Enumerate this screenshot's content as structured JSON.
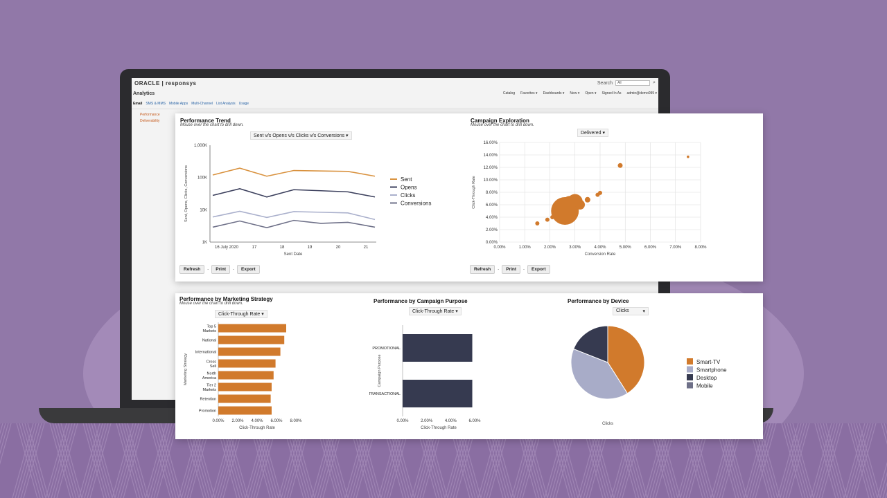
{
  "background_app": {
    "brand": "ORACLE | responsys",
    "search_label": "Search",
    "search_value": "All",
    "title": "Analytics",
    "menu": [
      "Catalog",
      "Favorites ▾",
      "Dashboards ▾",
      "New ▾",
      "Open ▾",
      "Signed In As",
      "admin@demo099 ▾"
    ],
    "tabs": [
      "Email",
      "SMS & MMS",
      "Mobile Apps",
      "Multi-Channel",
      "List Analysis",
      "Usage"
    ],
    "side_items": [
      "Performance",
      "Deliverability"
    ]
  },
  "buttons": {
    "refresh": "Refresh",
    "print": "Print",
    "export": "Export",
    "sep": "-"
  },
  "performance_trend": {
    "title": "Performance Trend",
    "subtitle": "Mouse over the chart to drill down.",
    "dropdown": "Sent v/s Opens v/s Clicks v/s Conversions ▾"
  },
  "campaign_exploration": {
    "title": "Campaign Exploration",
    "subtitle": "Mouse over the chart to drill down.",
    "dropdown": "Delivered ▾"
  },
  "marketing_strategy": {
    "title": "Performance by Marketing Strategy",
    "subtitle": "Mouse over the chart to drill down.",
    "dropdown": "Click-Through Rate ▾"
  },
  "campaign_purpose": {
    "title": "Performance by Campaign Purpose",
    "dropdown": "Click-Through Rate ▾"
  },
  "device": {
    "title": "Performance by Device",
    "dropdown": "Clicks",
    "dropdown_arrow": "▾"
  },
  "chart_data": [
    {
      "id": "trend",
      "type": "line",
      "yscale": "log",
      "ylim": [
        1000,
        1000000
      ],
      "yticks": [
        {
          "v": 1000,
          "l": "1K"
        },
        {
          "v": 10000,
          "l": "10K"
        },
        {
          "v": 100000,
          "l": "100K"
        },
        {
          "v": 1000000,
          "l": "1,000K"
        }
      ],
      "xticks": [
        "16 July 2020",
        "17",
        "18",
        "19",
        "20",
        "21"
      ],
      "xlabel": "Sent Date",
      "ylabel": "Sent, Opens, Clicks, Conversions",
      "series": [
        {
          "name": "Sent",
          "color": "#d9923f",
          "values": [
            120000,
            195000,
            110000,
            165000,
            160000,
            155000,
            110000
          ]
        },
        {
          "name": "Opens",
          "color": "#3b3f5c",
          "values": [
            28000,
            45000,
            25000,
            42000,
            39000,
            36000,
            25000
          ]
        },
        {
          "name": "Clicks",
          "color": "#aab0cc",
          "values": [
            6000,
            9000,
            5800,
            8800,
            8400,
            8000,
            5000
          ]
        },
        {
          "name": "Conversions",
          "color": "#6e7088",
          "values": [
            2900,
            4500,
            2800,
            4700,
            3800,
            4100,
            2900
          ]
        }
      ]
    },
    {
      "id": "exploration",
      "type": "scatter",
      "xlabel": "Conversion Rate",
      "ylabel": "Click-Through Rate",
      "xlim": [
        0,
        8
      ],
      "ylim": [
        0,
        16
      ],
      "xticks": [
        "0.00%",
        "1.00%",
        "2.00%",
        "3.00%",
        "4.00%",
        "5.00%",
        "6.00%",
        "7.00%",
        "8.00%"
      ],
      "yticks": [
        "0.00%",
        "2.00%",
        "4.00%",
        "6.00%",
        "8.00%",
        "10.00%",
        "12.00%",
        "14.00%",
        "16.00%"
      ],
      "points": [
        {
          "x": 1.5,
          "y": 3.0,
          "size": 3
        },
        {
          "x": 1.9,
          "y": 3.6,
          "size": 3
        },
        {
          "x": 2.1,
          "y": 4.0,
          "size": 3
        },
        {
          "x": 2.6,
          "y": 5.0,
          "size": 20
        },
        {
          "x": 2.8,
          "y": 6.2,
          "size": 11
        },
        {
          "x": 3.0,
          "y": 6.5,
          "size": 11
        },
        {
          "x": 3.2,
          "y": 6.0,
          "size": 7
        },
        {
          "x": 3.5,
          "y": 6.8,
          "size": 4
        },
        {
          "x": 3.9,
          "y": 7.6,
          "size": 3
        },
        {
          "x": 4.0,
          "y": 7.9,
          "size": 3
        },
        {
          "x": 4.8,
          "y": 12.3,
          "size": 3.5
        },
        {
          "x": 7.5,
          "y": 13.7,
          "size": 1.8
        }
      ],
      "color": "#d17a2c"
    },
    {
      "id": "strategy",
      "type": "bar",
      "orientation": "horizontal",
      "categories": [
        "Top 5 Markets",
        "National",
        "International",
        "Cross Sell",
        "North America",
        "Tier 2 Markets",
        "Retention",
        "Promotion"
      ],
      "values": [
        7.0,
        6.8,
        6.4,
        5.9,
        5.7,
        5.5,
        5.4,
        5.5
      ],
      "xlim": [
        0,
        8
      ],
      "xticks": [
        "0.00%",
        "2.00%",
        "4.00%",
        "6.00%",
        "8.00%"
      ],
      "xlabel": "Click-Through Rate",
      "ylabel": "Marketing Strategy",
      "color": "#d17a2c"
    },
    {
      "id": "purpose",
      "type": "bar",
      "orientation": "horizontal",
      "categories": [
        "PROMOTIONAL",
        "TRANSACTIONAL"
      ],
      "values": [
        5.8,
        5.8
      ],
      "xlim": [
        0,
        6
      ],
      "xticks": [
        "0.00%",
        "2.00%",
        "4.00%",
        "6.00%"
      ],
      "xlabel": "Click-Through Rate",
      "ylabel": "Campaign Purpose",
      "color": "#363a50"
    },
    {
      "id": "device_pie",
      "type": "pie",
      "xlabel": "Clicks",
      "slices": [
        {
          "name": "Smart-TV",
          "value": 41,
          "color": "#d17a2c"
        },
        {
          "name": "Smartphone",
          "value": 40,
          "color": "#a8acc8"
        },
        {
          "name": "Desktop",
          "value": 19,
          "color": "#363a50"
        },
        {
          "name": "Mobile",
          "value": 0,
          "color": "#6e7088"
        }
      ]
    }
  ]
}
